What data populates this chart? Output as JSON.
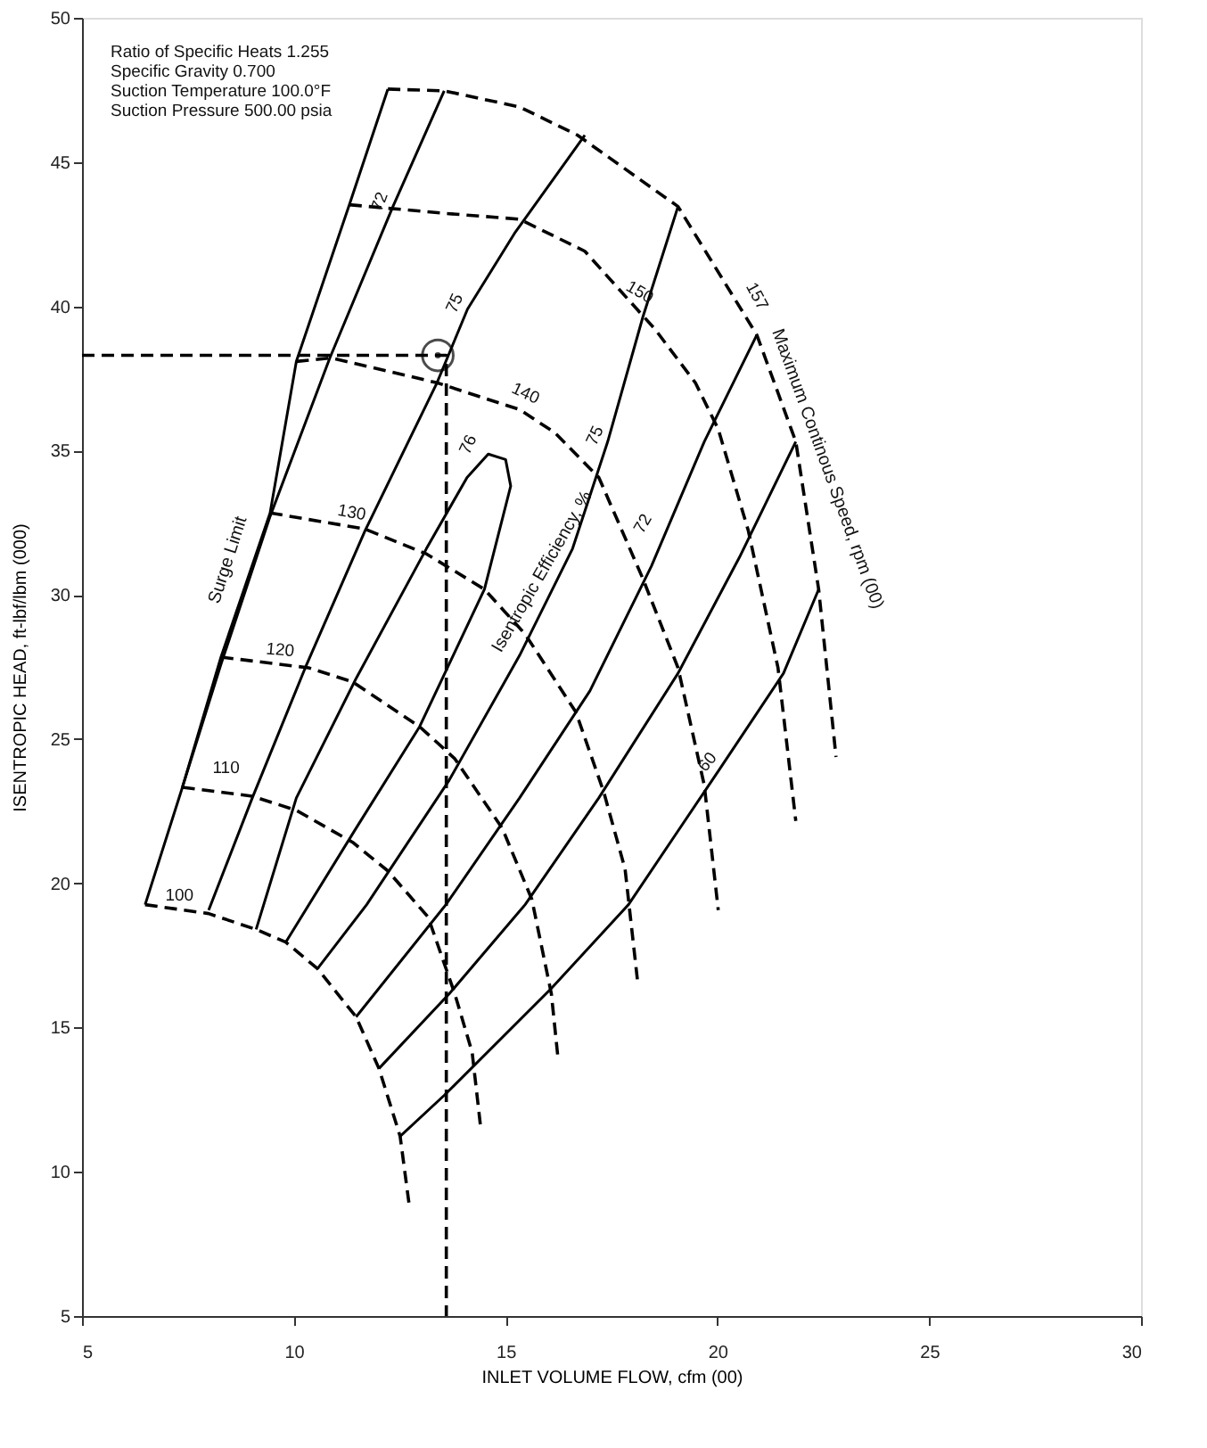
{
  "chart_data": {
    "type": "line",
    "xlabel": "INLET VOLUME FLOW, cfm (00)",
    "ylabel": "ISENTROPIC HEAD, ft-lbf/lbm (000)",
    "xlim": [
      5,
      30
    ],
    "ylim": [
      5,
      50
    ],
    "xticks": [
      5,
      10,
      15,
      20,
      25,
      30
    ],
    "yticks": [
      5,
      10,
      15,
      20,
      25,
      30,
      35,
      40,
      45,
      50
    ],
    "grid": false,
    "marker": "none",
    "series": [
      {
        "color": "#000000",
        "line_style": "dashed",
        "x": [
          6.49,
          7.99,
          9.11,
          9.81,
          10.56,
          11.47,
          12.01,
          12.51,
          12.72
        ],
        "values": [
          19.26,
          18.95,
          18.4,
          17.96,
          17.04,
          15.37,
          13.58,
          11.23,
          8.89
        ]
      },
      {
        "color": "#000000",
        "line_style": "dashed",
        "x": [
          7.37,
          9.02,
          10.06,
          11.39,
          12.22,
          13.17,
          13.8,
          14.21,
          14.42
        ],
        "values": [
          23.33,
          23.02,
          22.53,
          21.42,
          20.43,
          18.83,
          16.17,
          14.14,
          11.42
        ]
      },
      {
        "color": "#000000",
        "line_style": "dashed",
        "x": [
          8.28,
          10.35,
          11.39,
          12.97,
          13.8,
          14.92,
          15.62,
          16.08,
          16.24
        ],
        "values": [
          27.84,
          27.47,
          26.98,
          25.43,
          24.32,
          21.91,
          19.44,
          16.17,
          13.89
        ]
      },
      {
        "color": "#000000",
        "line_style": "dashed",
        "x": [
          9.44,
          11.68,
          13.13,
          14.5,
          15.46,
          16.66,
          17.32,
          17.82,
          18.11
        ],
        "values": [
          32.84,
          32.28,
          31.42,
          30.19,
          28.64,
          25.93,
          23.15,
          20.49,
          16.67
        ]
      },
      {
        "color": "#000000",
        "line_style": "dashed",
        "x": [
          10.06,
          10.89,
          13.38,
          15.33,
          16.16,
          17.2,
          18.24,
          19.07,
          19.69,
          20.02
        ],
        "values": [
          38.09,
          38.21,
          37.35,
          36.42,
          35.62,
          34.07,
          30.56,
          27.47,
          23.4,
          19.07
        ]
      },
      {
        "color": "#000000",
        "line_style": "dashed",
        "x": [
          11.31,
          13.67,
          15.33,
          16.87,
          18.53,
          19.48,
          20.02,
          20.73,
          21.43,
          21.85
        ],
        "values": [
          43.52,
          43.21,
          43.02,
          41.91,
          39.2,
          37.35,
          35.74,
          32.22,
          27.47,
          22.16
        ]
      },
      {
        "color": "#000000",
        "line_style": "dashed",
        "x": [
          12.22,
          13.55,
          15.33,
          16.7,
          19.07,
          20.93,
          21.85,
          22.39,
          22.8
        ],
        "values": [
          47.53,
          47.47,
          46.91,
          45.93,
          43.46,
          39.01,
          35.31,
          30.19,
          24.38
        ]
      },
      {
        "color": "#000000",
        "line_style": "solid",
        "x": [
          6.49,
          7.37,
          8.28,
          9.44,
          10.06,
          11.31,
          12.22
        ],
        "values": [
          19.26,
          23.33,
          27.84,
          32.84,
          38.09,
          43.52,
          47.53
        ]
      },
      {
        "color": "#000000",
        "line_style": "solid",
        "x": [
          7.37,
          8.28,
          9.44,
          10.85,
          12.34,
          13.55
        ],
        "values": [
          23.33,
          27.59,
          32.72,
          38.21,
          43.46,
          47.47
        ]
      },
      {
        "color": "#000000",
        "line_style": "solid",
        "x": [
          7.99,
          9.02,
          10.27,
          11.68,
          13.38,
          14.1,
          15.21,
          16.87
        ],
        "values": [
          19.07,
          22.96,
          27.47,
          32.22,
          37.35,
          39.9,
          42.53,
          45.93
        ]
      },
      {
        "color": "#000000",
        "line_style": "solid",
        "x": [
          9.11,
          10.06,
          11.47,
          13.13,
          14.09,
          14.59,
          15.0,
          15.12,
          14.5,
          12.97,
          11.47,
          9.81
        ],
        "values": [
          18.4,
          22.96,
          27.1,
          31.6,
          34.07,
          34.88,
          34.69,
          33.77,
          30.19,
          25.43,
          21.91,
          17.96
        ]
      },
      {
        "color": "#000000",
        "line_style": "solid",
        "x": [
          10.56,
          11.72,
          13.67,
          15.33,
          16.58,
          17.41,
          18.24,
          19.07
        ],
        "values": [
          17.04,
          19.26,
          23.58,
          27.9,
          31.6,
          35.31,
          39.63,
          43.46
        ]
      },
      {
        "color": "#000000",
        "line_style": "solid",
        "x": [
          11.47,
          13.59,
          15.33,
          16.99,
          18.44,
          19.69,
          20.93
        ],
        "values": [
          15.37,
          19.26,
          22.96,
          26.67,
          30.99,
          35.31,
          39.01
        ]
      },
      {
        "color": "#000000",
        "line_style": "solid",
        "x": [
          12.01,
          13.67,
          15.46,
          17.2,
          19.07,
          20.52,
          21.85
        ],
        "values": [
          13.58,
          16.17,
          19.26,
          22.96,
          27.28,
          31.3,
          35.31
        ]
      },
      {
        "color": "#000000",
        "line_style": "solid",
        "x": [
          12.51,
          13.55,
          16.08,
          17.9,
          20.02,
          21.56,
          22.39
        ],
        "values": [
          11.23,
          12.65,
          16.36,
          19.26,
          23.89,
          27.28,
          30.19
        ]
      },
      {
        "color": "#000000",
        "line_style": "dashed",
        "x": [
          5,
          13.6,
          13.6
        ],
        "values": [
          38.3,
          38.3,
          5
        ]
      },
      {
        "type": "scatter",
        "marker": "circle",
        "color": "#000000",
        "x": [
          13.4
        ],
        "values": [
          38.3
        ]
      }
    ],
    "annotations": [
      "Ratio of Specific Heats 1.255",
      "Specific Gravity 0.700",
      "Suction Temperature 100.0°F",
      "Suction Pressure 500.00 psia",
      {
        "text": "72",
        "x": 12.34,
        "y": 43.46
      },
      {
        "text": "75",
        "x": 14.1,
        "y": 39.9
      },
      {
        "text": "76",
        "x": 14.42,
        "y": 35.0
      },
      {
        "text": "75",
        "x": 17.41,
        "y": 35.31
      },
      {
        "text": "72",
        "x": 18.53,
        "y": 32.22
      },
      {
        "text": "60",
        "x": 20.02,
        "y": 23.89
      },
      {
        "text": "100",
        "x": 7.3,
        "y": 19.09
      },
      {
        "text": "110",
        "x": 8.4,
        "y": 23.52
      },
      {
        "text": "120",
        "x": 9.65,
        "y": 27.6
      },
      {
        "text": "130",
        "x": 11.31,
        "y": 32.37
      },
      {
        "text": "140",
        "x": 15.33,
        "y": 36.54
      },
      {
        "text": "150",
        "x": 18.0,
        "y": 40.07
      },
      {
        "text": "157",
        "x": 20.64,
        "y": 40.12
      },
      {
        "text": "Surge Limit",
        "x": 9.0,
        "y": 30.94
      },
      {
        "text": "Isentropic Efficiency, %",
        "x": 16.37,
        "y": 30.37
      },
      {
        "text": "Maximum Continous Speed, rpm  (00)",
        "x": 22.05,
        "y": 34.07
      }
    ]
  }
}
